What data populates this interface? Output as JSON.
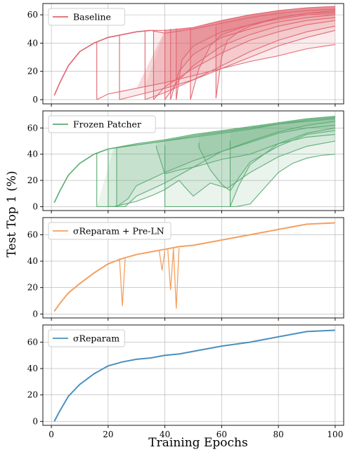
{
  "chart_data": {
    "type": "line",
    "xlabel": "Training Epochs",
    "ylabel": "Test Top 1 (%)",
    "xlim": [
      -3,
      103
    ],
    "xticks": [
      0,
      20,
      40,
      60,
      80,
      100
    ],
    "grid": true,
    "shared_x": true,
    "panels": [
      {
        "legend": "Baseline",
        "legend_position": "top-left",
        "color": "#e06470",
        "ylim": [
          -3,
          68
        ],
        "yticks": [
          0,
          20,
          40,
          60
        ],
        "base_curve": {
          "x": [
            1,
            3,
            6,
            10,
            15,
            20,
            25,
            30,
            35
          ],
          "y": [
            3,
            12,
            24,
            34,
            40,
            44,
            46,
            48,
            49
          ]
        },
        "runs": [
          {
            "collapse_epoch": 16,
            "x": [
              16,
              20,
              30,
              40,
              50,
              60,
              70,
              80,
              90,
              100
            ],
            "y": [
              0,
              4,
              8,
              12,
              17,
              22,
              27,
              31,
              36,
              39
            ]
          },
          {
            "collapse_epoch": 24,
            "x": [
              24,
              30,
              40,
              50,
              60,
              70,
              80,
              90,
              100
            ],
            "y": [
              0,
              3,
              8,
              14,
              22,
              30,
              38,
              44,
              49
            ]
          },
          {
            "collapse_epoch": 33,
            "x": [
              33,
              40,
              50,
              60,
              70,
              80,
              90,
              100
            ],
            "y": [
              0,
              5,
              14,
              24,
              34,
              42,
              48,
              52
            ]
          },
          {
            "collapse_epoch": 36,
            "x": [
              36,
              40,
              50,
              60,
              70,
              80,
              90,
              100
            ],
            "y": [
              0,
              9,
              22,
              33,
              42,
              48,
              53,
              56
            ]
          },
          {
            "collapse_epoch": 40,
            "x": [
              40,
              45,
              50,
              60,
              70,
              80,
              90,
              100
            ],
            "y": [
              0,
              14,
              24,
              38,
              46,
              52,
              56,
              58
            ]
          },
          {
            "collapse_epoch": 42,
            "x": [
              42,
              45,
              50,
              60,
              70,
              80,
              90,
              100
            ],
            "y": [
              0,
              20,
              32,
              44,
              50,
              55,
              58,
              60
            ]
          },
          {
            "collapse_epoch": 44,
            "x": [
              44,
              46,
              50,
              60,
              70,
              80,
              90,
              100
            ],
            "y": [
              0,
              28,
              38,
              48,
              53,
              57,
              60,
              61
            ]
          },
          {
            "collapse_epoch": 49,
            "x": [
              49,
              52,
              56,
              60,
              70,
              80,
              90,
              100
            ],
            "y": [
              0,
              22,
              38,
              46,
              53,
              58,
              61,
              62
            ]
          },
          {
            "collapse_epoch": 58,
            "x": [
              58,
              60,
              62,
              66,
              70,
              80,
              90,
              100
            ],
            "y": [
              1,
              30,
              42,
              48,
              52,
              58,
              61,
              63
            ]
          },
          {
            "collapse_epoch": null,
            "x": [
              35,
              40,
              50,
              60,
              70,
              80,
              90,
              100
            ],
            "y": [
              49,
              47,
              50,
              54,
              58,
              61,
              63,
              64
            ]
          },
          {
            "collapse_epoch": null,
            "x": [
              35,
              40,
              50,
              60,
              70,
              80,
              90,
              100
            ],
            "y": [
              49,
              49,
              51,
              56,
              60,
              63,
              65,
              66
            ]
          }
        ]
      },
      {
        "legend": "Frozen Patcher",
        "legend_position": "top-left",
        "color": "#5aab72",
        "ylim": [
          -3,
          73
        ],
        "yticks": [
          0,
          20,
          40,
          60
        ],
        "base_curve": {
          "x": [
            1,
            3,
            6,
            10,
            15,
            20
          ],
          "y": [
            3,
            12,
            24,
            33,
            40,
            44
          ]
        },
        "runs": [
          {
            "collapse_epoch": 40,
            "x": [
              40,
              60,
              65,
              70,
              75,
              80,
              85,
              90,
              95,
              100
            ],
            "y": [
              0,
              0,
              0,
              2,
              14,
              26,
              33,
              37,
              39,
              40
            ]
          },
          {
            "collapse_epoch": 16,
            "x": [
              16,
              22,
              30,
              36,
              40,
              45,
              47,
              50,
              56,
              62,
              70,
              80,
              90,
              100
            ],
            "y": [
              0,
              0,
              4,
              9,
              13,
              20,
              15,
              8,
              18,
              14,
              26,
              38,
              46,
              50
            ]
          },
          {
            "collapse_epoch": 20,
            "x": [
              20,
              26,
              30,
              36,
              40,
              45,
              50,
              60,
              70,
              80,
              90,
              100
            ],
            "y": [
              0,
              0,
              8,
              14,
              18,
              24,
              30,
              36,
              40,
              48,
              53,
              55
            ]
          },
          {
            "collapse_epoch": 23,
            "x": [
              23,
              27,
              30,
              40,
              50,
              60,
              70,
              80,
              90,
              100
            ],
            "y": [
              0,
              6,
              16,
              26,
              35,
              42,
              49,
              56,
              60,
              62
            ]
          },
          {
            "collapse_epoch": 52,
            "x": [
              52,
              56,
              60,
              63,
              66,
              70,
              80,
              90,
              100
            ],
            "y": [
              45,
              28,
              17,
              12,
              22,
              34,
              46,
              55,
              58
            ]
          },
          {
            "collapse_epoch": 63,
            "x": [
              63,
              66,
              70,
              80,
              90,
              100
            ],
            "y": [
              0,
              16,
              32,
              48,
              56,
              60
            ]
          },
          {
            "collapse_epoch": 37,
            "x": [
              37,
              40,
              45,
              50,
              55,
              60,
              70,
              80,
              90,
              100
            ],
            "y": [
              45,
              25,
              28,
              30,
              36,
              42,
              50,
              57,
              62,
              65
            ]
          },
          {
            "collapse_epoch": null,
            "x": [
              20,
              30,
              40,
              50,
              60,
              70,
              80,
              90,
              100
            ],
            "y": [
              44,
              48,
              51,
              55,
              58,
              61,
              64,
              67,
              69
            ]
          },
          {
            "collapse_epoch": null,
            "x": [
              20,
              30,
              40,
              50,
              60,
              70,
              80,
              90,
              100
            ],
            "y": [
              44,
              47,
              50,
              54,
              57,
              60,
              63,
              66,
              68
            ]
          },
          {
            "collapse_epoch": null,
            "x": [
              20,
              30,
              40,
              50,
              60,
              70,
              80,
              90,
              100
            ],
            "y": [
              44,
              47,
              50,
              53,
              56,
              59,
              63,
              65,
              67
            ]
          }
        ]
      },
      {
        "legend": "σReparam + Pre-LN",
        "legend_position": "top-left",
        "color": "#f4a060",
        "ylim": [
          -3,
          73
        ],
        "yticks": [
          0,
          20,
          40,
          60
        ],
        "main": {
          "x": [
            1,
            3,
            6,
            10,
            15,
            20,
            25,
            30,
            35,
            40,
            45,
            50,
            60,
            70,
            80,
            90,
            100
          ],
          "y": [
            2,
            8,
            16,
            23,
            31,
            38,
            42,
            45,
            47,
            49,
            51,
            52,
            56,
            60,
            64,
            68,
            69
          ]
        },
        "dips": [
          {
            "x": [
              24,
              25,
              26
            ],
            "y": [
              42,
              6,
              42
            ]
          },
          {
            "x": [
              38,
              39,
              40
            ],
            "y": [
              48,
              33,
              48
            ]
          },
          {
            "x": [
              41,
              42,
              43
            ],
            "y": [
              49,
              18,
              49
            ]
          },
          {
            "x": [
              43,
              44,
              45
            ],
            "y": [
              50,
              4,
              50
            ]
          }
        ]
      },
      {
        "legend": "σReparam",
        "legend_position": "top-left",
        "color": "#4a90be",
        "ylim": [
          -3,
          73
        ],
        "yticks": [
          0,
          20,
          40,
          60
        ],
        "main": {
          "x": [
            1,
            3,
            6,
            10,
            15,
            20,
            25,
            30,
            35,
            40,
            45,
            50,
            60,
            70,
            80,
            90,
            100
          ],
          "y": [
            0,
            8,
            19,
            28,
            36,
            42,
            45,
            47,
            48,
            50,
            51,
            53,
            57,
            60,
            64,
            68,
            69
          ]
        }
      }
    ]
  }
}
